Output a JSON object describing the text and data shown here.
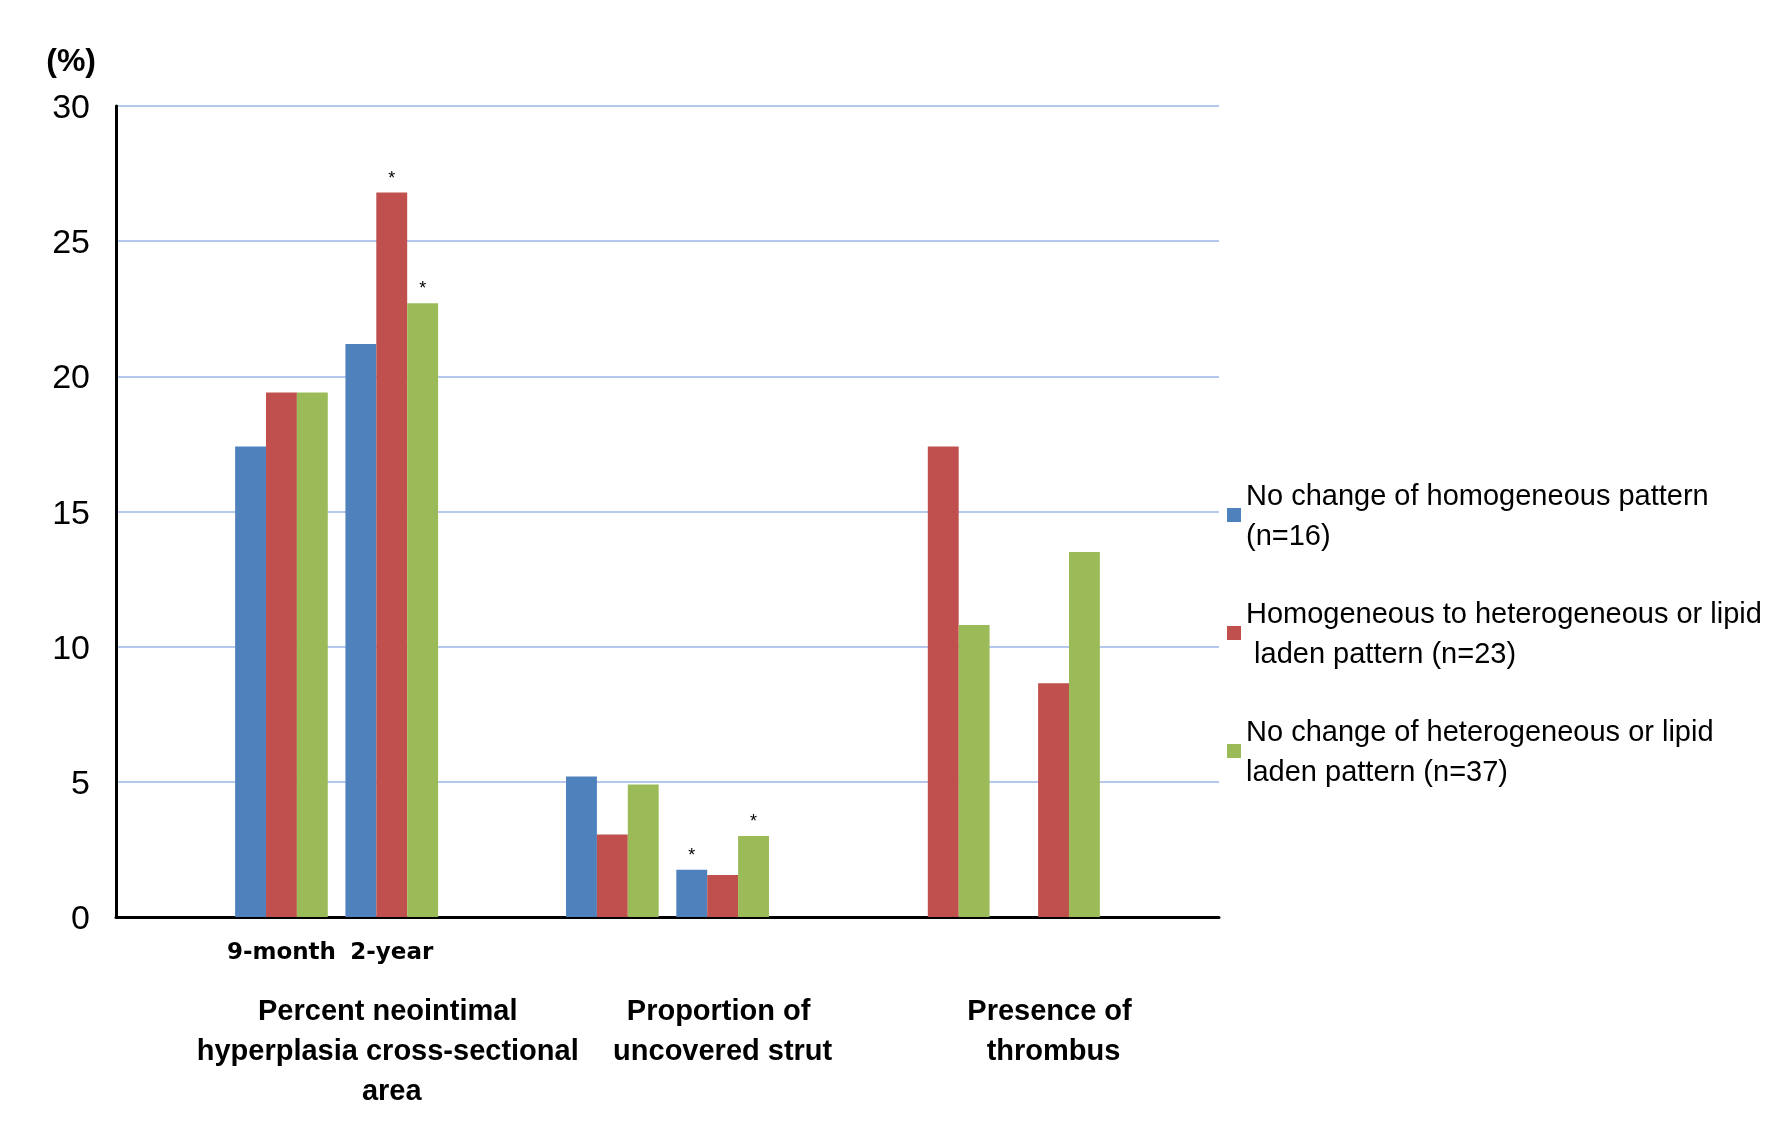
{
  "chart_data": {
    "type": "bar",
    "ylabel": "(%)",
    "categories": [
      null,
      "9-month",
      "2-year",
      null,
      null,
      null,
      null,
      null,
      null,
      null
    ],
    "series": [
      {
        "name": "No change of homogeneous pattern (n=16)",
        "color": "#4f81bd",
        "values": [
          null,
          17.4,
          21.2,
          null,
          5.2,
          1.75,
          null,
          null,
          null,
          null
        ],
        "value_labels": [
          null,
          null,
          null,
          null,
          null,
          "*",
          null,
          null,
          null,
          null
        ]
      },
      {
        "name": "Homogeneous to heterogeneous or lipid laden pattern (n=23)",
        "color": "#c0504d",
        "values": [
          null,
          19.4,
          26.8,
          null,
          3.05,
          1.55,
          null,
          17.4,
          8.65,
          null
        ],
        "value_labels": [
          null,
          null,
          "*",
          null,
          null,
          null,
          null,
          null,
          null,
          null
        ]
      },
      {
        "name": "No change of heterogeneous or lipid laden pattern (n=37)",
        "color": "#9bbb59",
        "values": [
          null,
          19.4,
          22.7,
          null,
          4.9,
          3.0,
          null,
          10.8,
          13.5,
          null
        ],
        "value_labels": [
          null,
          null,
          "*",
          null,
          null,
          "*",
          null,
          null,
          null,
          null
        ]
      }
    ],
    "ylim": [
      0,
      30
    ],
    "yticks": [
      0,
      5,
      10,
      15,
      20,
      25,
      30
    ],
    "grid": "y",
    "legend": "right",
    "annotations": [
      "Percent neointimal hyperplasia cross-sectional area",
      "Proportion of uncovered strut",
      "Presence of thrombus"
    ]
  }
}
